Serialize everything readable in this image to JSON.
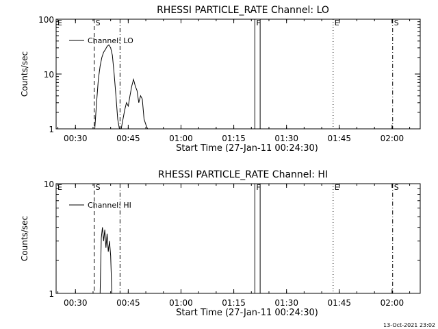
{
  "timestamp": "13-Oct-2021 23:02",
  "chart_data": [
    {
      "type": "line",
      "title": "RHESSI PARTICLE_RATE Channel: LO",
      "xlabel": "Start Time (27-Jan-11 00:24:30)",
      "ylabel": "Counts/sec",
      "yscale": "log",
      "ylim": [
        1,
        100
      ],
      "xlim": [
        "00:24:30",
        "02:08:00"
      ],
      "x_ticks": [
        "00:30",
        "00:45",
        "01:00",
        "01:15",
        "01:30",
        "01:45",
        "02:00"
      ],
      "y_ticks": [
        "1",
        "10",
        "100"
      ],
      "legend": "top-left",
      "series": [
        {
          "name": "Channel: LO",
          "x": [
            "00:35:30",
            "00:36:00",
            "00:36:30",
            "00:37:00",
            "00:37:30",
            "00:38:00",
            "00:38:30",
            "00:39:00",
            "00:39:30",
            "00:40:00",
            "00:40:30",
            "00:41:00",
            "00:41:30",
            "00:42:00",
            "00:42:30",
            "00:43:00",
            "00:43:30",
            "00:44:00",
            "00:44:30",
            "00:45:00",
            "00:45:30",
            "00:46:00",
            "00:46:30",
            "00:47:00",
            "00:47:30",
            "00:48:00",
            "00:48:30",
            "00:49:00",
            "00:49:30",
            "00:50:00",
            "00:50:30"
          ],
          "y": [
            1,
            3,
            8,
            14,
            20,
            25,
            28,
            32,
            34,
            30,
            22,
            10,
            4,
            1.5,
            1,
            1,
            1.5,
            2.2,
            3,
            2.6,
            4,
            6,
            8,
            6,
            5,
            3,
            4,
            3.5,
            1.5,
            1.2,
            1
          ]
        }
      ],
      "markers": [
        {
          "label": "E",
          "time": "00:24:30",
          "style": "solid"
        },
        {
          "label": "S",
          "time": "00:35:20",
          "style": "dashed"
        },
        {
          "time": "00:42:40",
          "style": "dash-dot"
        },
        {
          "label": "F",
          "time": "01:21:00",
          "style": "solid"
        },
        {
          "time": "01:22:30",
          "style": "solid"
        },
        {
          "label": "E",
          "time": "01:43:15",
          "style": "dotted"
        },
        {
          "label": "S",
          "time": "02:00:10",
          "style": "dash-dot"
        }
      ]
    },
    {
      "type": "line",
      "title": "RHESSI PARTICLE_RATE Channel: HI",
      "xlabel": "Start Time (27-Jan-11 00:24:30)",
      "ylabel": "Counts/sec",
      "yscale": "log",
      "ylim": [
        1,
        10
      ],
      "xlim": [
        "00:24:30",
        "02:08:00"
      ],
      "x_ticks": [
        "00:30",
        "00:45",
        "01:00",
        "01:15",
        "01:30",
        "01:45",
        "02:00"
      ],
      "y_ticks": [
        "1",
        "10"
      ],
      "legend": "top-left",
      "series": [
        {
          "name": "Channel: HI",
          "x": [
            "00:37:00",
            "00:37:20",
            "00:37:40",
            "00:38:00",
            "00:38:20",
            "00:38:40",
            "00:39:00",
            "00:39:20",
            "00:39:40",
            "00:40:00",
            "00:40:20"
          ],
          "y": [
            1,
            3.2,
            4,
            3,
            3.8,
            2.6,
            3.5,
            2.4,
            3,
            2.2,
            1
          ]
        }
      ],
      "markers": [
        {
          "label": "E",
          "time": "00:24:30",
          "style": "solid"
        },
        {
          "label": "S",
          "time": "00:35:20",
          "style": "dashed"
        },
        {
          "time": "00:42:40",
          "style": "dash-dot"
        },
        {
          "label": "F",
          "time": "01:21:00",
          "style": "solid"
        },
        {
          "time": "01:22:30",
          "style": "solid"
        },
        {
          "label": "E",
          "time": "01:43:15",
          "style": "dotted"
        },
        {
          "label": "S",
          "time": "02:00:10",
          "style": "dash-dot"
        }
      ]
    }
  ]
}
